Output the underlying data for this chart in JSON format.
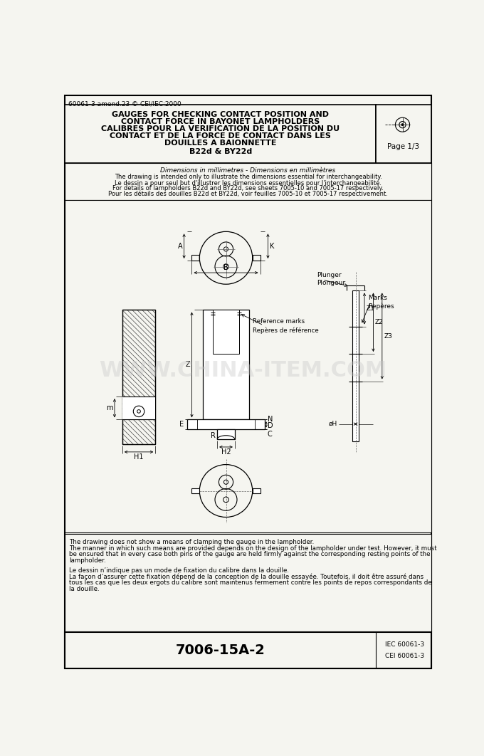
{
  "bg_color": "#f0f0f0",
  "paper_color": "#f5f5f0",
  "line_color": "#000000",
  "watermark_text": "WWW.CHINA-ITEM.COM",
  "watermark_color": "#c8c8c8",
  "header": {
    "top_left_text": "60061-3 amend.23 © CEI/IEC:2000",
    "title_line1": "GAUGES FOR CHECKING CONTACT POSITION AND",
    "title_line2": "CONTACT FORCE IN BAYONET LAMPHOLDERS",
    "title_line3": "CALIBRES POUR LA VERIFICATION DE LA POSITION DU",
    "title_line4": "CONTACT ET DE LA FORCE DE CONTACT DANS LES",
    "title_line5": "DOUILLES A BAIONNETTE",
    "title_line6": "B22d & BY22d",
    "page_text": "Page 1/3"
  },
  "info_text": [
    "Dimensions in millimetres - Dimensions en millimètres",
    "The drawing is intended only to illustrate the dimensions essential for interchangeability.",
    "Le dessin a pour seul but d'illustrer les dimensions essentielles pour l'interchangeabilité.",
    "For details of lampholders B22d and BY22d, see sheets 7005-10 and 7005-17 respectively.",
    "Pour les détails des douilles B22d et BY22d, voir feuilles 7005-10 et 7005-17 respectivement."
  ],
  "bottom_notes": [
    "The drawing does not show a means of clamping the gauge in the lampholder.",
    "The manner in which such means are provided depends on the design of the lampholder under test. However, it must",
    "be ensured that in every case both pins of the gauge are held firmly against the corresponding resting points of the",
    "lampholder.",
    "",
    "Le dessin n’indique pas un mode de fixation du calibre dans la douille.",
    "La façon d’assurer cette fixation dépend de la conception de la douille essayée. Toutefois, il doit être assuré dans",
    "tous les cas que les deux ergots du calibre sont maintenus fermement contre les points de repos correspondants de",
    "la douille."
  ],
  "footer_center": "7006-15A-2",
  "footer_right1": "IEC 60061-3",
  "footer_right2": "CEI 60061-3"
}
